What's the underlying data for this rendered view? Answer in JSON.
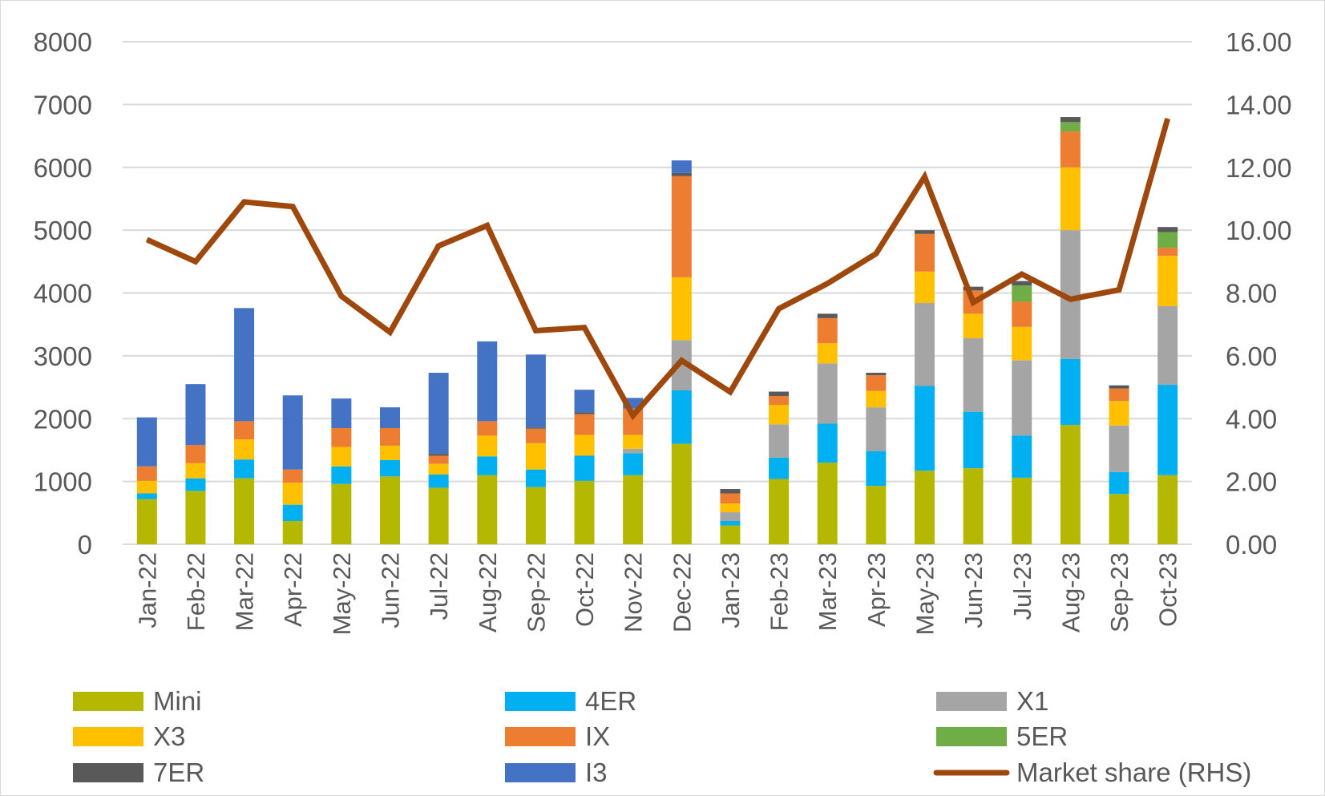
{
  "chart_data": {
    "type": "bar",
    "stacked": true,
    "title": "",
    "xlabel": "",
    "ylabel": "",
    "y2label": "",
    "ylim": [
      0,
      8000
    ],
    "y2lim": [
      0,
      16
    ],
    "yticks": [
      "0",
      "1000",
      "2000",
      "3000",
      "4000",
      "5000",
      "6000",
      "7000",
      "8000"
    ],
    "y2ticks": [
      "0.00",
      "2.00",
      "4.00",
      "6.00",
      "8.00",
      "10.00",
      "12.00",
      "14.00",
      "16.00"
    ],
    "grid": true,
    "legend_position": "bottom",
    "categories": [
      "Jan-22",
      "Feb-22",
      "Mar-22",
      "Apr-22",
      "May-22",
      "Jun-22",
      "Jul-22",
      "Aug-22",
      "Sep-22",
      "Oct-22",
      "Nov-22",
      "Dec-22",
      "Jan-23",
      "Feb-23",
      "Mar-23",
      "Apr-23",
      "May-23",
      "Jun-23",
      "Jul-23",
      "Aug-23",
      "Sep-23",
      "Oct-23"
    ],
    "series": [
      {
        "name": "Mini",
        "color": "#b5b800",
        "values": [
          720,
          850,
          1050,
          370,
          960,
          1080,
          900,
          1100,
          910,
          1010,
          1100,
          1600,
          300,
          1040,
          1300,
          930,
          1170,
          1210,
          1060,
          1900,
          800,
          1100
        ]
      },
      {
        "name": "4ER",
        "color": "#00b0f0",
        "values": [
          90,
          200,
          300,
          260,
          280,
          260,
          210,
          300,
          280,
          400,
          350,
          850,
          70,
          340,
          620,
          550,
          1350,
          900,
          670,
          1050,
          350,
          1440
        ]
      },
      {
        "name": "X1",
        "color": "#a5a5a5",
        "values": [
          0,
          0,
          0,
          0,
          0,
          0,
          0,
          0,
          0,
          0,
          70,
          800,
          140,
          530,
          960,
          700,
          1320,
          1170,
          1200,
          2050,
          740,
          1250
        ]
      },
      {
        "name": "X3",
        "color": "#ffc000",
        "values": [
          200,
          240,
          320,
          350,
          310,
          230,
          170,
          330,
          420,
          330,
          220,
          1000,
          140,
          310,
          320,
          260,
          500,
          390,
          530,
          1000,
          390,
          800
        ]
      },
      {
        "name": "IX",
        "color": "#ed7d31",
        "values": [
          230,
          290,
          290,
          210,
          300,
          280,
          130,
          230,
          230,
          330,
          420,
          1610,
          160,
          140,
          400,
          250,
          600,
          370,
          400,
          570,
          200,
          130
        ]
      },
      {
        "name": "5ER",
        "color": "#70ad47",
        "values": [
          0,
          0,
          0,
          0,
          0,
          0,
          0,
          0,
          0,
          0,
          0,
          0,
          0,
          0,
          0,
          0,
          0,
          0,
          260,
          150,
          0,
          250
        ]
      },
      {
        "name": "7ER",
        "color": "#595959",
        "values": [
          0,
          0,
          0,
          0,
          0,
          0,
          30,
          0,
          20,
          30,
          0,
          50,
          70,
          70,
          70,
          40,
          60,
          60,
          70,
          80,
          50,
          80
        ]
      },
      {
        "name": "I3",
        "color": "#4472c4",
        "values": [
          780,
          970,
          1800,
          1180,
          470,
          330,
          1290,
          1270,
          1160,
          360,
          170,
          200,
          0,
          0,
          0,
          0,
          0,
          0,
          0,
          0,
          0,
          0
        ]
      }
    ],
    "line_series": {
      "name": "Market share (RHS)",
      "color": "#9e480e",
      "axis": "right",
      "values": [
        9.7,
        9.0,
        10.9,
        10.75,
        7.9,
        6.75,
        9.5,
        10.15,
        6.8,
        6.9,
        4.1,
        5.85,
        4.85,
        7.5,
        8.3,
        9.25,
        11.7,
        7.7,
        8.6,
        7.8,
        8.1,
        13.55
      ]
    }
  }
}
